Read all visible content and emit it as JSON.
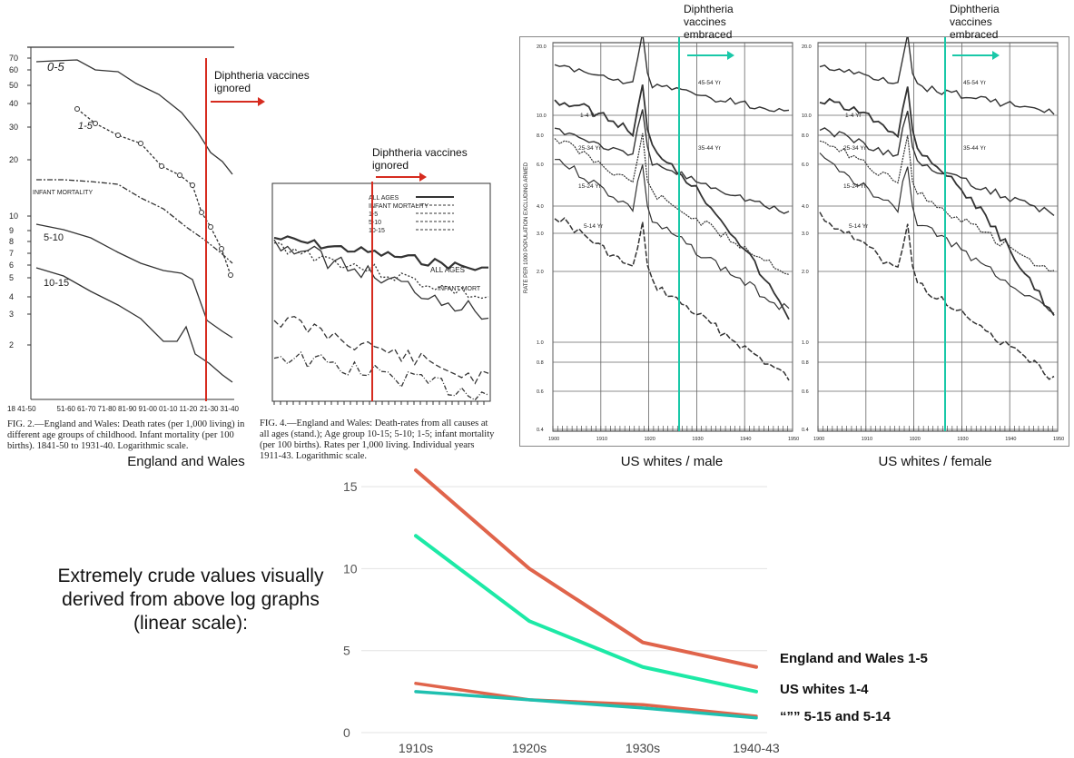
{
  "top_figures": {
    "ew_panel": {
      "age_labels": [
        "0-5",
        "1-5",
        "INFANT MORTALITY",
        "5-10",
        "10-15"
      ],
      "y_ticks": [
        "70",
        "60",
        "50",
        "40",
        "30",
        "20",
        "10",
        "9",
        "8",
        "7",
        "6",
        "5",
        "4",
        "3",
        "2"
      ],
      "x_ticks": [
        "18 41-50",
        "51-60",
        "61-70",
        "71-80",
        "81-90",
        "91-00",
        "01-10",
        "11-20",
        "21-30",
        "31-40"
      ],
      "annotation": "Diphtheria vaccines ignored",
      "caption": "FIG. 2.—England and Wales: Death rates (per 1,000 living) in different age groups of childhood. Infant mortality (per 100 births). 1841-50 to 1931-40. Logarithmic scale.",
      "label": "England and Wales"
    },
    "ew_panel2": {
      "annotation": "Diphtheria vaccines ignored",
      "legend": [
        "ALL AGES",
        "INFANT MORTALITY",
        "1-5",
        "5-10",
        "10-15"
      ],
      "in_labels": [
        "ALL AGES",
        "INFANT MORT"
      ],
      "caption": "FIG. 4.—England and Wales: Death-rates from all causes at all ages (stand.); Age group 10-15; 5-10; 1-5; infant mortality (per 100 births). Rates per 1,000 living. Individual years 1911-43. Logarithmic scale."
    },
    "us_male": {
      "annotation": "Diphtheria vaccines embraced",
      "label": "US whites / male",
      "y_axis_label": "RATE PER 1000 POPULATION EXCLUDING ARMED",
      "age_labels": [
        "45-54 Yr",
        "1-4 Yr",
        "35-44 Yr",
        "25-34 Yr",
        "15-24 Yr",
        "5-14 Yr"
      ],
      "y_ticks": [
        "20.0",
        "10.0",
        "8.0",
        "6.0",
        "4.0",
        "3.0",
        "2.0",
        "1.0",
        "0.8",
        "0.6",
        "0.4"
      ],
      "x_ticks": [
        "1900",
        "1910",
        "1920",
        "1930",
        "1940",
        "1950"
      ]
    },
    "us_female": {
      "annotation": "Diphtheria vaccines embraced",
      "label": "US whites / female",
      "age_labels": [
        "45-54 Yr",
        "1-4 Yr",
        "35-44 Yr",
        "25-34 Yr",
        "15-24 Yr",
        "5-14 Yr"
      ],
      "y_ticks": [
        "20.0",
        "10.0",
        "8.0",
        "6.0",
        "4.0",
        "3.0",
        "2.0",
        "1.0",
        "0.8",
        "0.6",
        "0.4"
      ],
      "x_ticks": [
        "1900",
        "1910",
        "1920",
        "1930",
        "1940",
        "1950"
      ]
    }
  },
  "description": "Extremely crude values visually derived from above log graphs (linear scale):",
  "colors": {
    "ew": "#e0644b",
    "us": "#1de9a6",
    "us_small": "#1fc0b0",
    "vaccine_ignored": "#d62b1f",
    "vaccine_embraced": "#19c8a8"
  },
  "chart_data": {
    "type": "line",
    "categories": [
      "1910s",
      "1920s",
      "1930s",
      "1940-43"
    ],
    "y_ticks": [
      0,
      5,
      10,
      15
    ],
    "ylim": [
      0,
      16
    ],
    "grid": true,
    "series": [
      {
        "name": "England and Wales 1-5",
        "values": [
          16,
          10,
          5.5,
          4
        ],
        "color": "#e0644b"
      },
      {
        "name": "US whites 1-4",
        "values": [
          12,
          6.8,
          4,
          2.5
        ],
        "color": "#1de9a6"
      },
      {
        "name": "“”” 5-15 and 5-14",
        "values": [
          3,
          2,
          1.7,
          1
        ],
        "color": "#e0644b"
      },
      {
        "name": "",
        "values": [
          2.5,
          2,
          1.5,
          0.9
        ],
        "color": "#1fc0b0"
      }
    ]
  }
}
